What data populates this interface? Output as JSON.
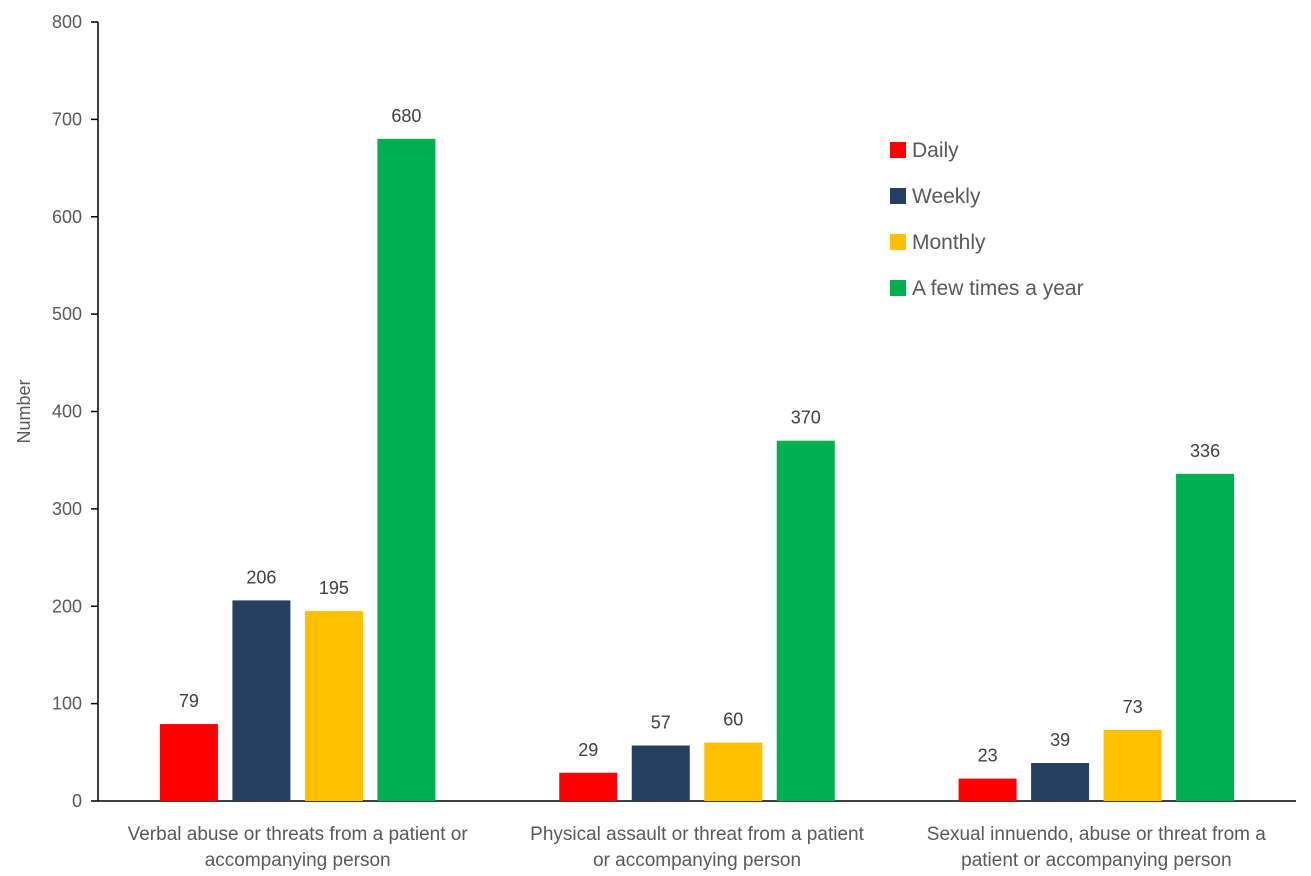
{
  "chart_data": {
    "type": "bar",
    "categories": [
      [
        "Verbal abuse or threats from a patient or",
        "accompanying person"
      ],
      [
        "Physical assault or threat from a patient",
        "or accompanying person"
      ],
      [
        "Sexual innuendo, abuse or threat from a",
        "patient or accompanying person"
      ]
    ],
    "series": [
      {
        "name": "Daily",
        "color": "#ff0000",
        "values": [
          79,
          29,
          23
        ]
      },
      {
        "name": "Weekly",
        "color": "#243f60",
        "values": [
          206,
          57,
          39
        ]
      },
      {
        "name": "Monthly",
        "color": "#ffc000",
        "values": [
          195,
          60,
          73
        ]
      },
      {
        "name": "A few times a year",
        "color": "#00b050",
        "values": [
          680,
          370,
          336
        ]
      }
    ],
    "ylabel": "Number",
    "ylim": [
      0,
      800
    ],
    "yticks": [
      0,
      100,
      200,
      300,
      400,
      500,
      600,
      700,
      800
    ],
    "grid": false,
    "legend_position": "top-right",
    "data_labels": true
  }
}
